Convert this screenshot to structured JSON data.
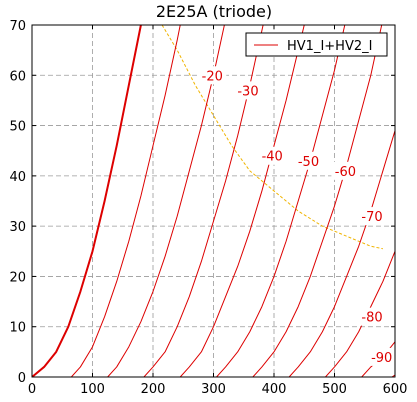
{
  "chart_data": {
    "type": "line",
    "title": "2E25A (triode)",
    "xlabel": "",
    "ylabel": "",
    "xlim": [
      0,
      600
    ],
    "ylim": [
      0,
      70
    ],
    "xticks": [
      0,
      100,
      200,
      300,
      400,
      500,
      600
    ],
    "yticks": [
      0,
      10,
      20,
      30,
      40,
      50,
      60,
      70
    ],
    "grid": true,
    "legend": {
      "position": "top-right",
      "entries": [
        "HV1_I+HV2_I"
      ]
    },
    "colors": {
      "curves": "#dd0000",
      "load_line": "#f0b400",
      "grid": "#9a9a9a"
    },
    "series": [
      {
        "values": [
          [
            0,
            0
          ],
          [
            20,
            2
          ],
          [
            40,
            5
          ],
          [
            60,
            10
          ],
          [
            80,
            17
          ],
          [
            100,
            25
          ],
          [
            120,
            35
          ],
          [
            140,
            46
          ],
          [
            160,
            58
          ],
          [
            180,
            70
          ]
        ]
      },
      {
        "values": [
          [
            65,
            0
          ],
          [
            80,
            2
          ],
          [
            100,
            6
          ],
          [
            120,
            12
          ],
          [
            140,
            19
          ],
          [
            160,
            27
          ],
          [
            180,
            36
          ],
          [
            200,
            46
          ],
          [
            220,
            56
          ],
          [
            240,
            67
          ],
          [
            245,
            70
          ]
        ]
      },
      {
        "values": [
          [
            125,
            0
          ],
          [
            140,
            2
          ],
          [
            160,
            6
          ],
          [
            180,
            11
          ],
          [
            200,
            17
          ],
          [
            220,
            24
          ],
          [
            240,
            32
          ],
          [
            260,
            41
          ],
          [
            280,
            50
          ],
          [
            300,
            60
          ],
          [
            318,
            70
          ]
        ]
      },
      {
        "values": [
          [
            185,
            0
          ],
          [
            200,
            2
          ],
          [
            220,
            5
          ],
          [
            240,
            10
          ],
          [
            260,
            16
          ],
          [
            280,
            23
          ],
          [
            300,
            31
          ],
          [
            320,
            39
          ],
          [
            340,
            48
          ],
          [
            360,
            58
          ],
          [
            382,
            70
          ]
        ]
      },
      {
        "values": [
          [
            245,
            0
          ],
          [
            260,
            2
          ],
          [
            280,
            5
          ],
          [
            300,
            10
          ],
          [
            320,
            16
          ],
          [
            340,
            22
          ],
          [
            360,
            29
          ],
          [
            380,
            37
          ],
          [
            400,
            46
          ],
          [
            420,
            55
          ],
          [
            440,
            65
          ],
          [
            450,
            70
          ]
        ]
      },
      {
        "values": [
          [
            305,
            0
          ],
          [
            320,
            2
          ],
          [
            340,
            5
          ],
          [
            360,
            9
          ],
          [
            380,
            14
          ],
          [
            400,
            20
          ],
          [
            420,
            27
          ],
          [
            440,
            35
          ],
          [
            460,
            43
          ],
          [
            480,
            52
          ],
          [
            500,
            61
          ],
          [
            517,
            70
          ]
        ]
      },
      {
        "values": [
          [
            365,
            0
          ],
          [
            380,
            2
          ],
          [
            400,
            5
          ],
          [
            420,
            9
          ],
          [
            440,
            14
          ],
          [
            460,
            20
          ],
          [
            480,
            27
          ],
          [
            500,
            34
          ],
          [
            520,
            42
          ],
          [
            540,
            51
          ],
          [
            560,
            60
          ],
          [
            578,
            70
          ]
        ]
      },
      {
        "values": [
          [
            425,
            0
          ],
          [
            440,
            2
          ],
          [
            460,
            5
          ],
          [
            480,
            9
          ],
          [
            500,
            14
          ],
          [
            520,
            20
          ],
          [
            540,
            26
          ],
          [
            560,
            33
          ],
          [
            580,
            41
          ],
          [
            600,
            49
          ]
        ]
      },
      {
        "values": [
          [
            485,
            0
          ],
          [
            500,
            2
          ],
          [
            520,
            5
          ],
          [
            540,
            9
          ],
          [
            560,
            14
          ],
          [
            580,
            19
          ],
          [
            600,
            25
          ]
        ]
      },
      {
        "values": [
          [
            545,
            0
          ],
          [
            560,
            2
          ],
          [
            580,
            4
          ],
          [
            600,
            7
          ]
        ]
      },
      {
        "values": [
          [
            595,
            0
          ],
          [
            600,
            0.4
          ]
        ]
      }
    ],
    "load_line": [
      [
        215,
        70
      ],
      [
        240,
        65
      ],
      [
        270,
        58
      ],
      [
        300,
        52
      ],
      [
        330,
        46
      ],
      [
        360,
        41
      ],
      [
        400,
        37
      ],
      [
        440,
        33
      ],
      [
        480,
        30
      ],
      [
        520,
        28
      ],
      [
        560,
        26
      ],
      [
        580,
        25.5
      ]
    ],
    "annotations": [
      {
        "text": "-20",
        "x": 298,
        "y": 60
      },
      {
        "text": "-30",
        "x": 357,
        "y": 57
      },
      {
        "text": "-40",
        "x": 397,
        "y": 44
      },
      {
        "text": "-50",
        "x": 457,
        "y": 43
      },
      {
        "text": "-60",
        "x": 518,
        "y": 41
      },
      {
        "text": "-70",
        "x": 562,
        "y": 32
      },
      {
        "text": "-80",
        "x": 562,
        "y": 12
      },
      {
        "text": "-90",
        "x": 578,
        "y": 4
      }
    ]
  }
}
